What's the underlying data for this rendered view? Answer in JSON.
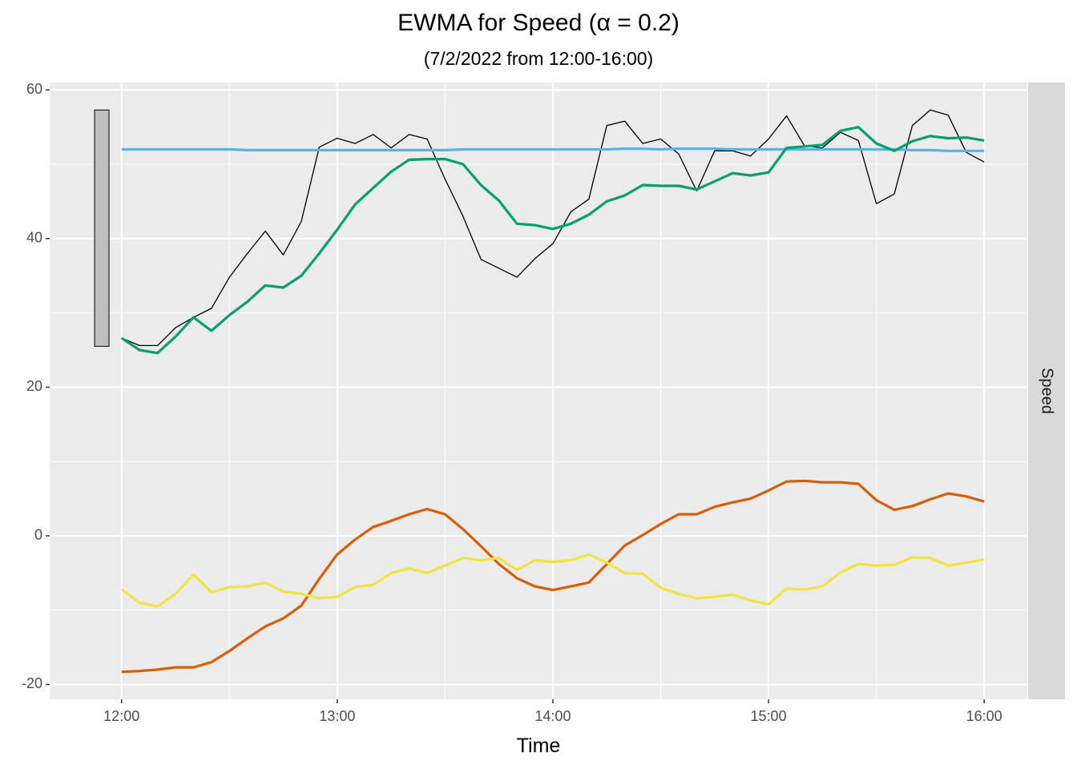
{
  "chart_data": {
    "type": "line",
    "title": "EWMA for Speed (α = 0.2)",
    "subtitle": "(7/2/2022 from 12:00-16:00)",
    "xlabel": "Time",
    "ylabel": "",
    "facet_label": "Speed",
    "x_ticks": [
      "12:00",
      "13:00",
      "14:00",
      "15:00",
      "16:00"
    ],
    "x_tick_minutes": [
      0,
      60,
      120,
      180,
      240
    ],
    "xlim_minutes": [
      -20,
      252
    ],
    "y_ticks": [
      -20,
      0,
      20,
      40,
      60
    ],
    "ylim": [
      -22,
      61
    ],
    "grid": true,
    "range_bar": {
      "x_minute": -5.5,
      "ymin": 25.5,
      "ymax": 57.3,
      "color": "#bebebe"
    },
    "x_minutes": [
      0,
      5,
      10,
      15,
      20,
      25,
      30,
      35,
      40,
      45,
      50,
      55,
      60,
      65,
      70,
      75,
      80,
      85,
      90,
      95,
      100,
      105,
      110,
      115,
      120,
      125,
      130,
      135,
      140,
      145,
      150,
      155,
      160,
      165,
      170,
      175,
      180,
      185,
      190,
      195,
      200,
      205,
      210,
      215,
      220,
      225,
      230,
      235,
      240
    ],
    "series": [
      {
        "color": "#000000",
        "width": 1.3,
        "values": [
          26.6,
          25.6,
          25.6,
          28,
          29.4,
          30.6,
          34.8,
          38,
          41,
          37.8,
          42.3,
          52.3,
          53.5,
          52.8,
          54,
          52.2,
          54,
          53.4,
          48,
          43,
          37.2,
          36,
          34.8,
          37.3,
          39.3,
          43.6,
          45.3,
          55.2,
          55.8,
          52.8,
          53.4,
          51.4,
          46.4,
          51.8,
          51.8,
          51.1,
          53.4,
          56.5,
          52.5,
          52.2,
          54.3,
          53.2,
          44.7,
          46,
          55.2,
          57.3,
          56.6,
          51.6,
          50.3
        ]
      },
      {
        "color": "#56b4e9",
        "width": 3.2,
        "values": [
          52,
          52,
          52,
          52,
          52,
          52,
          52,
          51.9,
          51.9,
          51.9,
          51.9,
          51.9,
          51.9,
          51.9,
          51.9,
          51.9,
          51.9,
          51.9,
          51.9,
          52,
          52,
          52,
          52,
          52,
          52,
          52,
          52,
          52,
          52.1,
          52.1,
          52,
          52.1,
          52.1,
          52.1,
          52,
          52,
          52,
          52,
          52,
          52,
          52,
          52,
          52,
          52,
          51.9,
          51.9,
          51.8,
          51.8,
          51.8
        ]
      },
      {
        "color": "#009e73",
        "width": 3.2,
        "values": [
          26.6,
          25,
          24.6,
          26.8,
          29.4,
          27.6,
          29.7,
          31.5,
          33.7,
          33.4,
          35,
          38,
          41.2,
          44.6,
          46.8,
          49,
          50.6,
          50.7,
          50.7,
          50,
          47.2,
          45.1,
          42,
          41.8,
          41.3,
          42,
          43.2,
          45,
          45.8,
          47.2,
          47.1,
          47.1,
          46.6,
          47.7,
          48.8,
          48.5,
          48.9,
          52.2,
          52.4,
          52.6,
          54.5,
          55,
          52.8,
          51.8,
          53.1,
          53.8,
          53.5,
          53.6,
          53.2
        ]
      },
      {
        "color": "#d55e00",
        "width": 3.2,
        "values": [
          -18.3,
          -18.2,
          -18,
          -17.7,
          -17.7,
          -17,
          -15.5,
          -13.8,
          -12.2,
          -11.1,
          -9.4,
          -5.8,
          -2.5,
          -0.5,
          1.2,
          2,
          2.9,
          3.6,
          2.9,
          0.9,
          -1.4,
          -3.8,
          -5.7,
          -6.8,
          -7.3,
          -6.8,
          -6.3,
          -3.8,
          -1.3,
          0.1,
          1.6,
          2.9,
          2.9,
          3.9,
          4.5,
          5,
          6.1,
          7.3,
          7.4,
          7.2,
          7.2,
          7,
          4.8,
          3.5,
          4,
          4.9,
          5.7,
          5.3,
          4.6
        ]
      },
      {
        "color": "#f0e442",
        "width": 3.2,
        "values": [
          -7.2,
          -9,
          -9.5,
          -7.8,
          -5.2,
          -7.6,
          -6.9,
          -6.8,
          -6.3,
          -7.5,
          -7.8,
          -8.4,
          -8.2,
          -6.9,
          -6.6,
          -5,
          -4.4,
          -5,
          -4,
          -3,
          -3.3,
          -3,
          -4.6,
          -3.3,
          -3.5,
          -3.3,
          -2.5,
          -3.6,
          -5,
          -5.1,
          -7,
          -7.8,
          -8.4,
          -8.2,
          -7.9,
          -8.7,
          -9.2,
          -7.1,
          -7.2,
          -6.8,
          -4.9,
          -3.8,
          -4,
          -3.9,
          -2.9,
          -3,
          -4,
          -3.6,
          -3.2
        ]
      }
    ]
  }
}
